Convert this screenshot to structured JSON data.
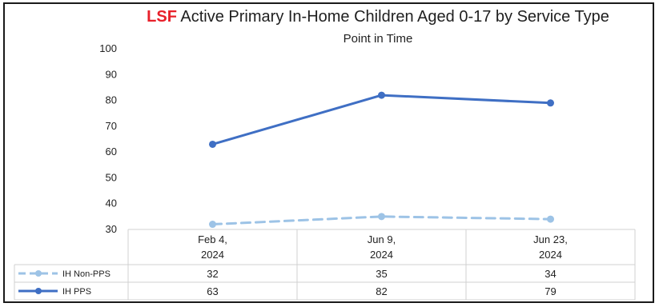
{
  "chart_data": {
    "type": "line",
    "title_brand": "LSF",
    "title_rest": " Active Primary In-Home Children Aged 0-17 by Service Type",
    "subtitle": "Point in Time",
    "xlabel": "",
    "ylabel": "",
    "ylim": [
      30,
      100
    ],
    "yticks": [
      "100",
      "90",
      "80",
      "70",
      "60",
      "50",
      "40",
      "30"
    ],
    "categories": [
      [
        "Feb 4,",
        "2024"
      ],
      [
        "Jun 9,",
        "2024"
      ],
      [
        "Jun 23,",
        "2024"
      ]
    ],
    "series": [
      {
        "name": "IH Non-PPS",
        "values": [
          32,
          35,
          34
        ],
        "color": "#9dc3e6",
        "dashed": true
      },
      {
        "name": "IH PPS",
        "values": [
          63,
          82,
          79
        ],
        "color": "#3f6fc4",
        "dashed": false
      }
    ],
    "legend": "data-table",
    "grid": false
  }
}
